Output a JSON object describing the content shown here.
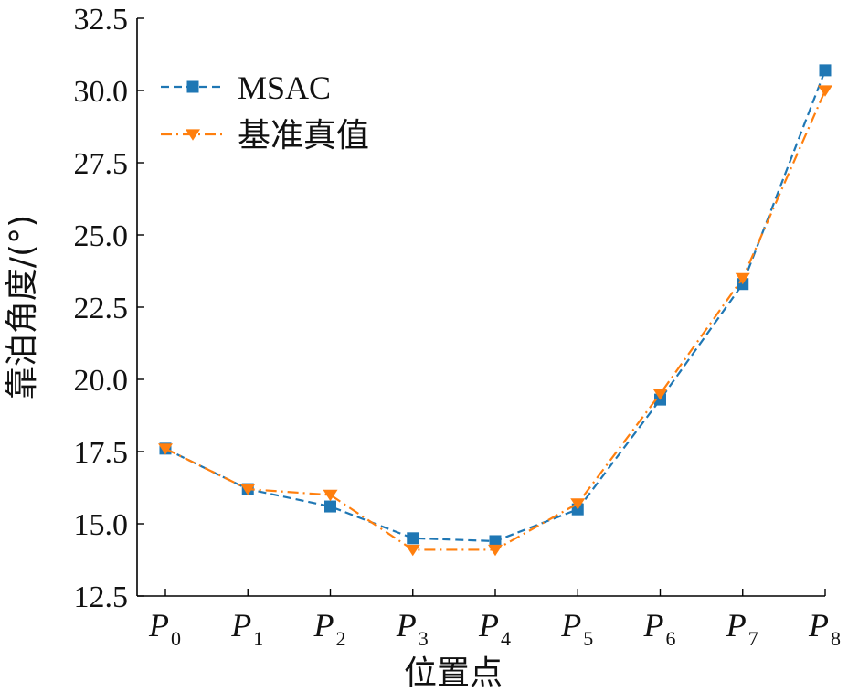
{
  "chart_data": {
    "type": "line",
    "title": "",
    "xlabel": "位置点",
    "ylabel": "靠泊角度/(°)",
    "categories": [
      {
        "base": "P",
        "sub": "0"
      },
      {
        "base": "P",
        "sub": "1"
      },
      {
        "base": "P",
        "sub": "2"
      },
      {
        "base": "P",
        "sub": "3"
      },
      {
        "base": "P",
        "sub": "4"
      },
      {
        "base": "P",
        "sub": "5"
      },
      {
        "base": "P",
        "sub": "6"
      },
      {
        "base": "P",
        "sub": "7"
      },
      {
        "base": "P",
        "sub": "8"
      }
    ],
    "ylim": [
      12.5,
      32.5
    ],
    "yticks": [
      "12.5",
      "15.0",
      "17.5",
      "20.0",
      "22.5",
      "25.0",
      "27.5",
      "30.0",
      "32.5"
    ],
    "grid": false,
    "legend_position": "top-left",
    "series": [
      {
        "name": "MSAC",
        "values": [
          17.6,
          16.2,
          15.6,
          14.5,
          14.4,
          15.5,
          19.3,
          23.3,
          30.7
        ],
        "color": "#1f77b4",
        "marker": "square",
        "line_style": "dashed"
      },
      {
        "name": "基准真值",
        "values": [
          17.6,
          16.2,
          16.0,
          14.1,
          14.1,
          15.7,
          19.5,
          23.5,
          30.0
        ],
        "color": "#ff7f0e",
        "marker": "triangle-down",
        "line_style": "dash-dot"
      }
    ]
  }
}
